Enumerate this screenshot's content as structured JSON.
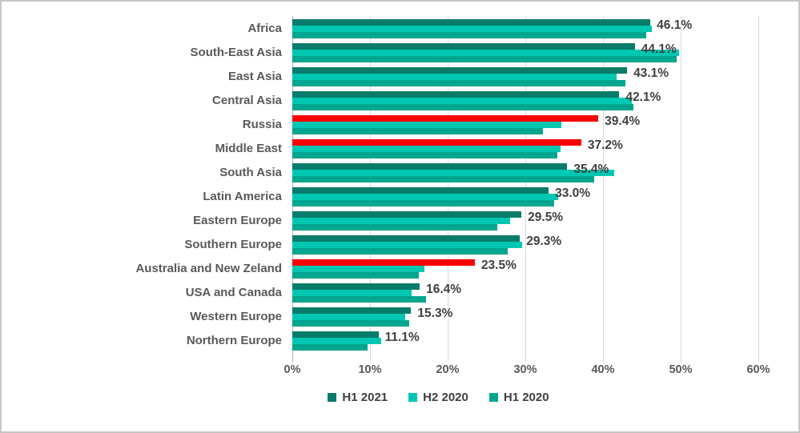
{
  "chart_data": {
    "type": "bar",
    "orientation": "horizontal",
    "title": "",
    "xlabel": "",
    "ylabel": "",
    "unit": "%",
    "xlim": [
      0,
      60
    ],
    "x_ticks": [
      "0%",
      "10%",
      "20%",
      "30%",
      "40%",
      "50%",
      "60%"
    ],
    "grid": true,
    "legend_position": "bottom",
    "series_names": [
      "H1 2021",
      "H2 2020",
      "H1 2020"
    ],
    "rows": [
      {
        "category": "Africa",
        "values": [
          46.1,
          46.3,
          45.6
        ],
        "label": "46.1%",
        "highlight": false
      },
      {
        "category": "South-East Asia",
        "values": [
          44.1,
          49.8,
          49.5
        ],
        "label": "44.1%",
        "highlight": false
      },
      {
        "category": "East Asia",
        "values": [
          43.1,
          41.8,
          42.9
        ],
        "label": "43.1%",
        "highlight": false
      },
      {
        "category": "Central Asia",
        "values": [
          42.1,
          43.7,
          43.9
        ],
        "label": "42.1%",
        "highlight": false
      },
      {
        "category": "Russia",
        "values": [
          39.4,
          34.6,
          32.3
        ],
        "label": "39.4%",
        "highlight": true
      },
      {
        "category": "Middle East",
        "values": [
          37.2,
          34.5,
          34.1
        ],
        "label": "37.2%",
        "highlight": true
      },
      {
        "category": "South Asia",
        "values": [
          35.4,
          41.4,
          38.9
        ],
        "label": "35.4%",
        "highlight": false
      },
      {
        "category": "Latin America",
        "values": [
          33.0,
          34.2,
          33.7
        ],
        "label": "33.0%",
        "highlight": false
      },
      {
        "category": "Eastern Europe",
        "values": [
          29.5,
          28.0,
          26.4
        ],
        "label": "29.5%",
        "highlight": false
      },
      {
        "category": "Southern Europe",
        "values": [
          29.3,
          29.6,
          27.7
        ],
        "label": "29.3%",
        "highlight": false
      },
      {
        "category": "Australia and New Zeland",
        "values": [
          23.5,
          17.0,
          16.3
        ],
        "label": "23.5%",
        "highlight": true
      },
      {
        "category": "USA and Canada",
        "values": [
          16.4,
          15.4,
          17.2
        ],
        "label": "16.4%",
        "highlight": false
      },
      {
        "category": "Western Europe",
        "values": [
          15.3,
          14.5,
          15.0
        ],
        "label": "15.3%",
        "highlight": false
      },
      {
        "category": "Northern Europe",
        "values": [
          11.1,
          11.4,
          9.7
        ],
        "label": "11.1%",
        "highlight": false
      }
    ]
  },
  "legend": {
    "items": [
      {
        "label": "H1 2021",
        "color": "#087c6a"
      },
      {
        "label": "H2 2020",
        "color": "#00c7b2"
      },
      {
        "label": "H1 2020",
        "color": "#00a68e"
      }
    ]
  },
  "colors": {
    "series1": "#087c6a",
    "series2": "#00c7b2",
    "series3": "#00a68e",
    "highlight": "#fa0000",
    "grid": "#d9d9d9",
    "axis_line": "#b3b3b3",
    "value_text": "#404040",
    "category_text": "#595959",
    "border": "#c6c6c6"
  }
}
